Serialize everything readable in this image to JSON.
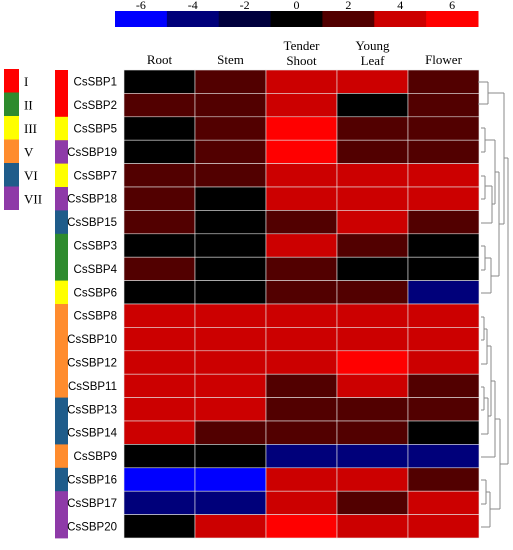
{
  "chart_data": {
    "type": "heatmap",
    "columns": [
      "Root",
      "Stem",
      "Tender Shoot",
      "Young Leaf",
      "Flower"
    ],
    "rows": [
      "CsSBP1",
      "CsSBP2",
      "CsSBP5",
      "CsSBP19",
      "CsSBP7",
      "CsSBP18",
      "CsSBP15",
      "CsSBP3",
      "CsSBP4",
      "CsSBP6",
      "CsSBP8",
      "CsSBP10",
      "CsSBP12",
      "CsSBP11",
      "CsSBP13",
      "CsSBP14",
      "CsSBP9",
      "CsSBP16",
      "CsSBP17",
      "CsSBP20"
    ],
    "values": [
      [
        0,
        2,
        4,
        4,
        2
      ],
      [
        2,
        2,
        4,
        0,
        2
      ],
      [
        0,
        2,
        6,
        2,
        2
      ],
      [
        0,
        2,
        6,
        2,
        2
      ],
      [
        2,
        2,
        4,
        4,
        4
      ],
      [
        2,
        0,
        4,
        4,
        4
      ],
      [
        2,
        0,
        2,
        4,
        2
      ],
      [
        0,
        0,
        4,
        2,
        0
      ],
      [
        2,
        0,
        2,
        0,
        0
      ],
      [
        0,
        0,
        2,
        2,
        -4
      ],
      [
        4,
        4,
        4,
        4,
        4
      ],
      [
        4,
        4,
        4,
        4,
        4
      ],
      [
        4,
        4,
        4,
        6,
        4
      ],
      [
        4,
        4,
        2,
        4,
        2
      ],
      [
        4,
        4,
        2,
        2,
        2
      ],
      [
        4,
        2,
        2,
        2,
        0
      ],
      [
        0,
        0,
        -4,
        -4,
        -4
      ],
      [
        -6,
        -6,
        4,
        4,
        2
      ],
      [
        -4,
        -4,
        4,
        2,
        4
      ],
      [
        0,
        4,
        6,
        4,
        4
      ]
    ],
    "scale": {
      "ticks": [
        "-6",
        "-4",
        "-2",
        "0",
        "2",
        "4",
        "6"
      ],
      "colors": [
        "#0000ff",
        "#00007a",
        "#00003d",
        "#000000",
        "#520000",
        "#cc0000",
        "#ff0000"
      ]
    },
    "groups": {
      "legend": [
        {
          "label": "I",
          "color": "#ff0000"
        },
        {
          "label": "II",
          "color": "#2e8b2e"
        },
        {
          "label": "III",
          "color": "#ffff00"
        },
        {
          "label": "V",
          "color": "#ff8c2e"
        },
        {
          "label": "VI",
          "color": "#1f5c8a"
        },
        {
          "label": "VII",
          "color": "#8e3aa8"
        }
      ],
      "row_groups": [
        "I",
        "I",
        "III",
        "VII",
        "III",
        "VII",
        "VI",
        "II",
        "II",
        "III",
        "V",
        "V",
        "V",
        "V",
        "VI",
        "VI",
        "V",
        "VI",
        "VII",
        "VII"
      ]
    }
  }
}
